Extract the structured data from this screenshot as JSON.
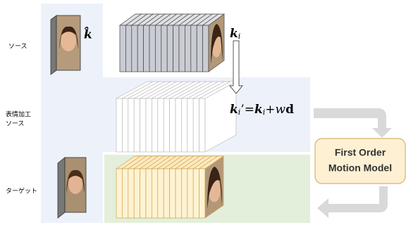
{
  "labels": {
    "source": "ソース",
    "edited_source": [
      "表情加工",
      "ソース"
    ],
    "target": "ターゲット"
  },
  "k_hat": "k̂",
  "k_i": {
    "base": "k",
    "sub": "i"
  },
  "formula": {
    "parts": [
      "k",
      "i",
      "’=",
      "k",
      "i",
      "+",
      "w",
      "d"
    ]
  },
  "model_box": {
    "lines": [
      "First Order",
      "Motion Model"
    ]
  }
}
